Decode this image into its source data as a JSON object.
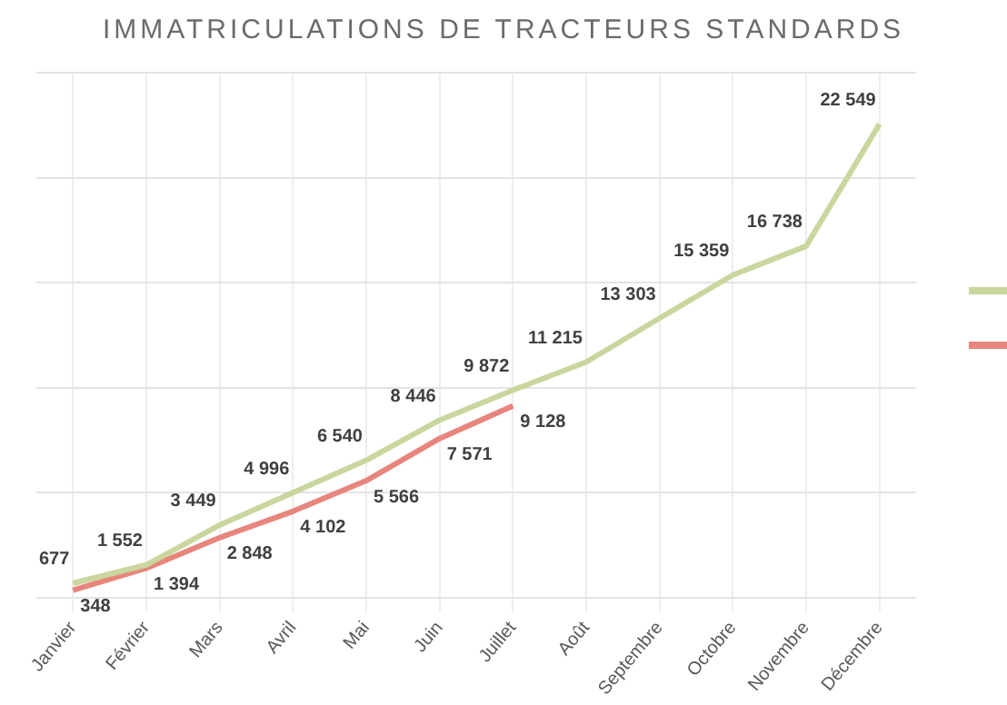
{
  "chart_data": {
    "type": "line",
    "title": "IMMATRICULATIONS DE TRACTEURS STANDARDS",
    "categories": [
      "Janvier",
      "Février",
      "Mars",
      "Avril",
      "Mai",
      "Juin",
      "Juillet",
      "Août",
      "Septembre",
      "Octobre",
      "Novembre",
      "Décembre"
    ],
    "series": [
      {
        "color": "#c9d69e",
        "values": [
          677,
          1552,
          3449,
          4996,
          6540,
          8446,
          9872,
          11215,
          13303,
          15359,
          16738,
          22549
        ]
      },
      {
        "color": "#e8857c",
        "values": [
          348,
          1394,
          2848,
          4102,
          5566,
          7571,
          9128,
          null,
          null,
          null,
          null,
          null
        ]
      }
    ],
    "ylim": [
      0,
      25000
    ],
    "yticks": [
      {
        "value": 0,
        "label": null
      },
      {
        "value": 5000,
        "label": null
      },
      {
        "value": 10000,
        "label": null
      },
      {
        "value": 15000,
        "label": null
      },
      {
        "value": 20000,
        "label": null
      },
      {
        "value": 25000,
        "label": null
      }
    ],
    "tick_labels": "x",
    "grid": true,
    "data_labels": true,
    "marker": "none"
  }
}
